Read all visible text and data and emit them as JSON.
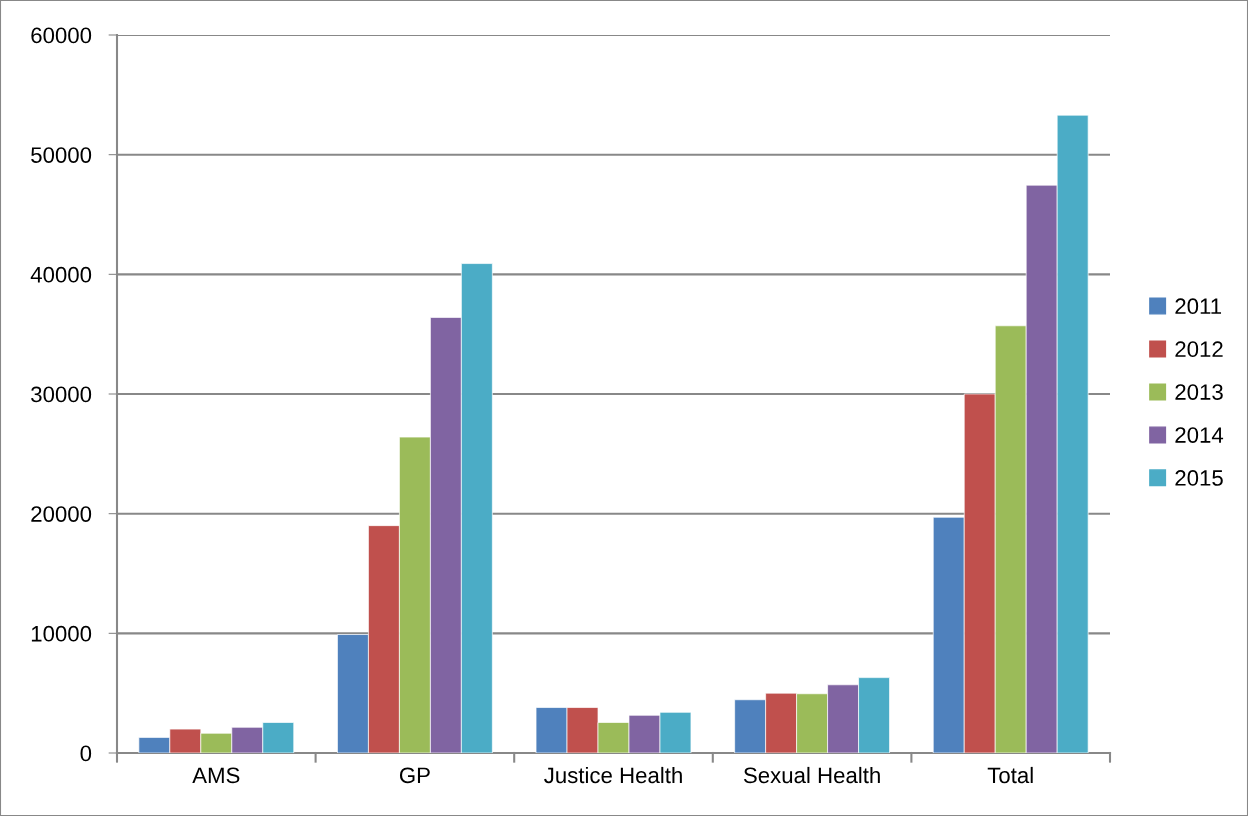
{
  "chart_data": {
    "type": "bar",
    "categories": [
      "AMS",
      "GP",
      "Justice Health",
      "Sexual Health",
      "Total"
    ],
    "series": [
      {
        "name": "2011",
        "color": "#4f81bd",
        "values": [
          1300,
          9900,
          3800,
          4450,
          19700
        ]
      },
      {
        "name": "2012",
        "color": "#c0504d",
        "values": [
          2000,
          19000,
          3800,
          5000,
          30000
        ]
      },
      {
        "name": "2013",
        "color": "#9bbb59",
        "values": [
          1650,
          26400,
          2550,
          4950,
          35700
        ]
      },
      {
        "name": "2014",
        "color": "#8064a2",
        "values": [
          2150,
          36400,
          3150,
          5700,
          47450
        ]
      },
      {
        "name": "2015",
        "color": "#4bacc6",
        "values": [
          2550,
          40900,
          3400,
          6300,
          53300
        ]
      }
    ],
    "ylim": [
      0,
      60000
    ],
    "yticks": [
      0,
      10000,
      20000,
      30000,
      40000,
      50000,
      60000
    ],
    "grid": "y",
    "legend": "right"
  }
}
